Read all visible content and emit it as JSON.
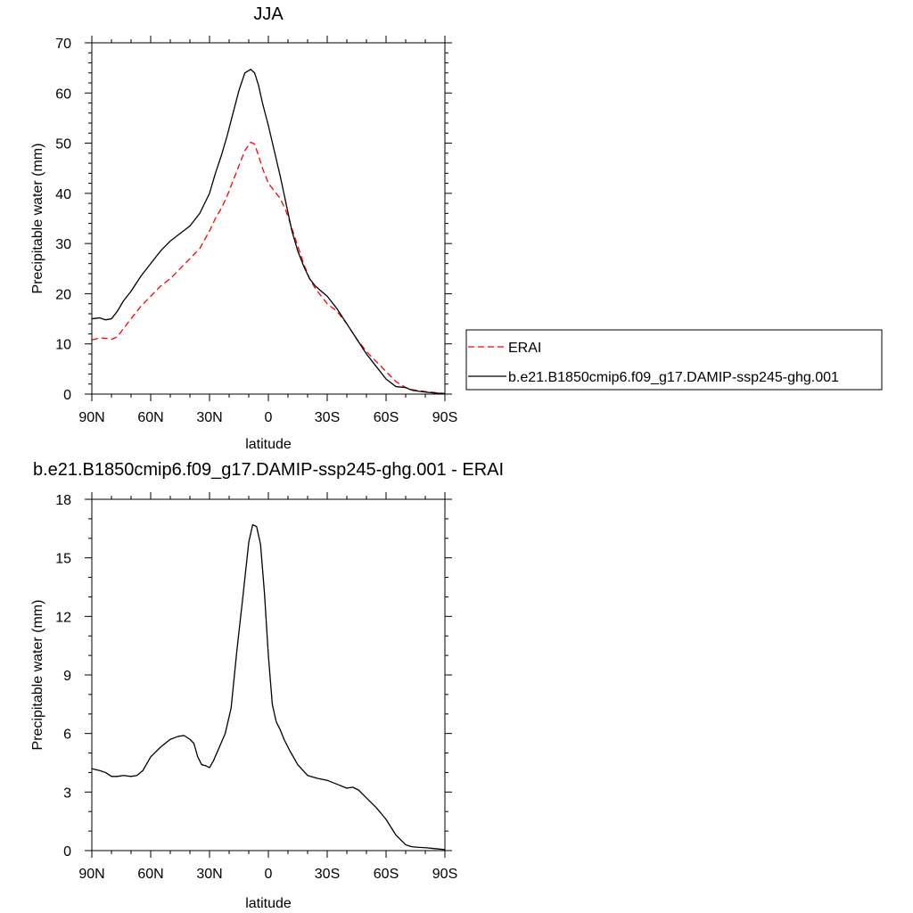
{
  "figure": {
    "panels": [
      {
        "title": "JJA",
        "xlabel": "latitude",
        "ylabel": "Precipitable water (mm)"
      },
      {
        "title": "b.e21.B1850cmip6.f09_g17.DAMIP-ssp245-ghg.001 - ERAI",
        "xlabel": "latitude",
        "ylabel": "Precipitable water (mm)"
      }
    ],
    "legend": {
      "items": [
        {
          "label": "ERAI",
          "color": "#ff0000",
          "style": "dashed"
        },
        {
          "label": "b.e21.B1850cmip6.f09_g17.DAMIP-ssp245-ghg.001",
          "color": "#000000",
          "style": "solid"
        }
      ]
    }
  },
  "chart_data": [
    {
      "type": "line",
      "title": "JJA",
      "xlabel": "latitude",
      "ylabel": "Precipitable water (mm)",
      "xlim": [
        90,
        -90
      ],
      "ylim": [
        0,
        70
      ],
      "x_ticks": [
        90,
        60,
        30,
        0,
        -30,
        -60,
        -90
      ],
      "x_tick_labels": [
        "90N",
        "60N",
        "30N",
        "0",
        "30S",
        "60S",
        "90S"
      ],
      "y_ticks": [
        0,
        10,
        20,
        30,
        40,
        50,
        60,
        70
      ],
      "y_tick_labels": [
        "0",
        "10",
        "20",
        "30",
        "40",
        "50",
        "60",
        "70"
      ],
      "legend_position": "right",
      "series": [
        {
          "name": "ERAI",
          "color": "#ff0000",
          "style": "dashed",
          "x": [
            90,
            86,
            83,
            80,
            77,
            74,
            70,
            65,
            60,
            55,
            50,
            45,
            40,
            35,
            30,
            27,
            24,
            21,
            18,
            15,
            12,
            9,
            7,
            5,
            3,
            0,
            -3,
            -6,
            -9,
            -12,
            -15,
            -18,
            -21,
            -24,
            -27,
            -30,
            -35,
            -40,
            -45,
            -50,
            -55,
            -60,
            -65,
            -70,
            -73,
            -76,
            -80,
            -85,
            -90
          ],
          "y": [
            10.8,
            11.2,
            11.1,
            10.9,
            11.4,
            13,
            15,
            17.5,
            19.5,
            21.5,
            23,
            25,
            27,
            29,
            32.5,
            35,
            37,
            39.5,
            42.5,
            45.5,
            48.5,
            50.2,
            49.8,
            47.5,
            45,
            42,
            40.5,
            39,
            36.5,
            33,
            29.5,
            26,
            23,
            21,
            19.5,
            18,
            16.5,
            14,
            11,
            8.5,
            6.5,
            4.5,
            2.5,
            1.3,
            0.9,
            0.7,
            0.5,
            0.3,
            0.1
          ]
        },
        {
          "name": "b.e21.B1850cmip6.f09_g17.DAMIP-ssp245-ghg.001",
          "color": "#000000",
          "style": "solid",
          "x": [
            90,
            86,
            83,
            80,
            77,
            74,
            70,
            65,
            60,
            55,
            50,
            45,
            40,
            35,
            30,
            27,
            24,
            21,
            18,
            15,
            12,
            9,
            7,
            5,
            3,
            0,
            -3,
            -6,
            -9,
            -12,
            -15,
            -18,
            -21,
            -24,
            -27,
            -30,
            -35,
            -40,
            -45,
            -50,
            -55,
            -60,
            -65,
            -70,
            -73,
            -76,
            -80,
            -85,
            -90
          ],
          "y": [
            15,
            15.2,
            14.8,
            15,
            16.5,
            18.5,
            20.5,
            23.5,
            26,
            28.5,
            30.5,
            32,
            33.5,
            36,
            40,
            44,
            47.5,
            51.5,
            56,
            60.5,
            64,
            64.7,
            64,
            61.5,
            58,
            53.5,
            48.5,
            43.5,
            38,
            32.5,
            28.5,
            25.5,
            23,
            21.5,
            20.5,
            19.5,
            17,
            14,
            11,
            8,
            5.5,
            3,
            1.5,
            1.3,
            0.8,
            0.6,
            0.4,
            0.2,
            0.1
          ]
        }
      ]
    },
    {
      "type": "line",
      "title": "b.e21.B1850cmip6.f09_g17.DAMIP-ssp245-ghg.001 - ERAI",
      "xlabel": "latitude",
      "ylabel": "Precipitable water (mm)",
      "xlim": [
        90,
        -90
      ],
      "ylim": [
        0,
        18
      ],
      "x_ticks": [
        90,
        60,
        30,
        0,
        -30,
        -60,
        -90
      ],
      "x_tick_labels": [
        "90N",
        "60N",
        "30N",
        "0",
        "30S",
        "60S",
        "90S"
      ],
      "y_ticks": [
        0,
        3,
        6,
        9,
        12,
        15,
        18
      ],
      "y_tick_labels": [
        "0",
        "3",
        "6",
        "9",
        "12",
        "15",
        "18"
      ],
      "series": [
        {
          "color": "#000000",
          "style": "solid",
          "x": [
            90,
            86,
            83,
            80,
            77,
            74,
            70,
            67,
            64,
            60,
            55,
            50,
            46,
            43,
            40,
            38,
            36,
            34,
            32,
            30,
            28,
            25,
            22,
            19,
            16,
            13,
            10,
            8,
            6,
            4,
            2,
            0,
            -2,
            -4,
            -6,
            -8,
            -11,
            -15,
            -20,
            -25,
            -30,
            -35,
            -40,
            -43,
            -46,
            -50,
            -55,
            -60,
            -65,
            -70,
            -73,
            -76,
            -80,
            -85,
            -90
          ],
          "y": [
            4.2,
            4.1,
            4.0,
            3.8,
            3.8,
            3.85,
            3.8,
            3.85,
            4.1,
            4.8,
            5.3,
            5.7,
            5.85,
            5.9,
            5.7,
            5.5,
            4.8,
            4.4,
            4.35,
            4.25,
            4.6,
            5.3,
            6.0,
            7.3,
            10.3,
            13.0,
            15.8,
            16.7,
            16.6,
            15.7,
            13.2,
            10.0,
            7.5,
            6.6,
            6.2,
            5.7,
            5.1,
            4.4,
            3.85,
            3.7,
            3.6,
            3.4,
            3.2,
            3.25,
            3.1,
            2.7,
            2.2,
            1.6,
            0.8,
            0.3,
            0.2,
            0.17,
            0.15,
            0.1,
            0.05
          ]
        }
      ]
    }
  ]
}
